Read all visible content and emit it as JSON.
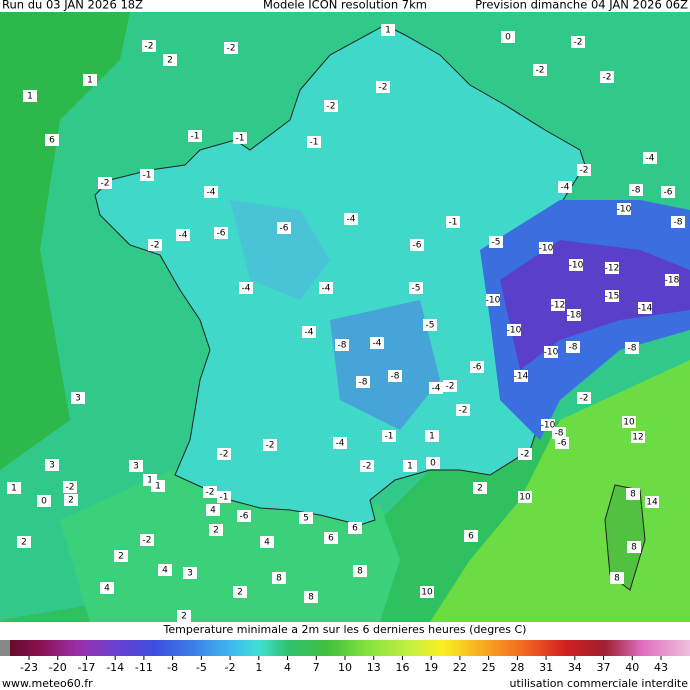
{
  "header": {
    "run": "Run du 03 JAN 2026 18Z",
    "model": "Modele ICON resolution 7km",
    "forecast": "Prevision dimanche 04 JAN 2026 06Z"
  },
  "map": {
    "labels": [
      -2,
      -2,
      2,
      1,
      -2,
      -2,
      -2,
      -2,
      0,
      1,
      1,
      -2,
      6,
      -1,
      -1,
      -1,
      -2,
      -4,
      -2,
      -1,
      -4,
      -4,
      -8,
      -6,
      -10,
      -8,
      -4,
      -1,
      -4,
      -6,
      -6,
      -2,
      -5,
      -10,
      -6,
      -10,
      -12,
      -18,
      -4,
      -5,
      -4,
      -15,
      -10,
      -12,
      -18,
      -14,
      -4,
      -5,
      -4,
      -8,
      -10,
      -10,
      -8,
      -8,
      -6,
      -8,
      -8,
      -4,
      -2,
      -14,
      -2,
      3,
      -2,
      -8,
      -10,
      -6,
      10,
      12,
      -4,
      -1,
      1,
      -2,
      -2,
      -2,
      -2,
      1,
      0,
      3,
      1,
      1,
      3,
      1,
      -2,
      2,
      0,
      -2,
      -1,
      4,
      -6,
      5,
      2,
      10,
      8,
      14,
      6,
      6,
      2,
      -2,
      2,
      4,
      6,
      8,
      2,
      4,
      3,
      8,
      8,
      4,
      8,
      2,
      8,
      10,
      2
    ]
  },
  "legend": {
    "title": "Temperature minimale a 2m sur les 6 dernieres heures (degres C)",
    "ticks": [
      -23,
      -20,
      -17,
      -14,
      -11,
      -8,
      -5,
      -2,
      1,
      4,
      7,
      10,
      13,
      16,
      19,
      22,
      25,
      28,
      31,
      34,
      37,
      40,
      43
    ]
  },
  "footer": {
    "site": "www.meteo60.fr",
    "notice": "utilisation commerciale interdite"
  }
}
